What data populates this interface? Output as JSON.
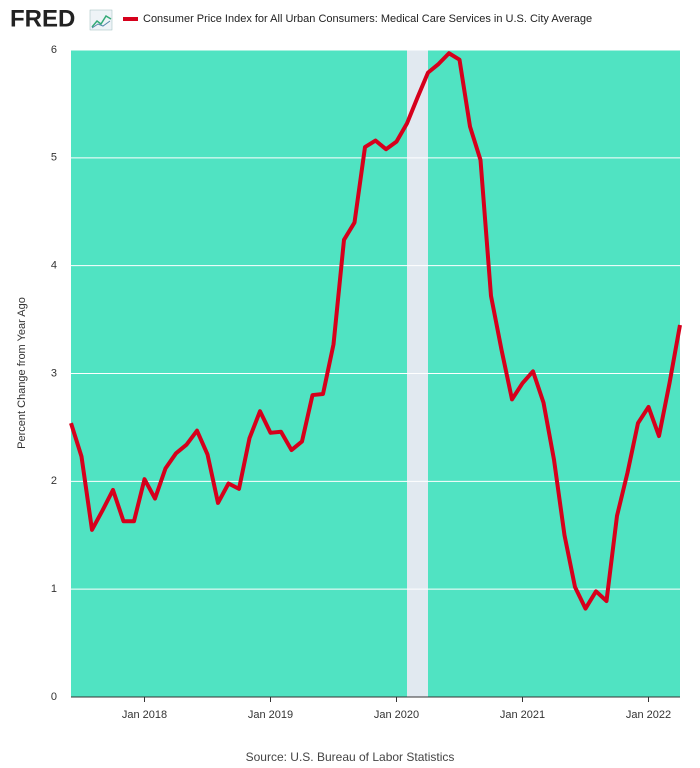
{
  "chart_data": {
    "type": "line",
    "logo": "FRED",
    "ylabel": "Percent Change from Year Ago",
    "source": "Source: U.S. Bureau of Labor Statistics",
    "background": "#50e3c2",
    "grid": true,
    "shaded_periods": [
      [
        "2020-02",
        "2020-04"
      ]
    ],
    "shade_color": "#e1e9f0",
    "x": [
      "2017-06",
      "2017-07",
      "2017-08",
      "2017-09",
      "2017-10",
      "2017-11",
      "2017-12",
      "2018-01",
      "2018-02",
      "2018-03",
      "2018-04",
      "2018-05",
      "2018-06",
      "2018-07",
      "2018-08",
      "2018-09",
      "2018-10",
      "2018-11",
      "2018-12",
      "2019-01",
      "2019-02",
      "2019-03",
      "2019-04",
      "2019-05",
      "2019-06",
      "2019-07",
      "2019-08",
      "2019-09",
      "2019-10",
      "2019-11",
      "2019-12",
      "2020-01",
      "2020-02",
      "2020-03",
      "2020-04",
      "2020-05",
      "2020-06",
      "2020-07",
      "2020-08",
      "2020-09",
      "2020-10",
      "2020-11",
      "2020-12",
      "2021-01",
      "2021-02",
      "2021-03",
      "2021-04",
      "2021-05",
      "2021-06",
      "2021-07",
      "2021-08",
      "2021-09",
      "2021-10",
      "2021-11",
      "2021-12",
      "2022-01",
      "2022-02",
      "2022-03",
      "2022-04"
    ],
    "series": [
      {
        "name": "Consumer Price Index for All Urban Consumers: Medical Care Services in U.S. City Average",
        "color": "#d6001c",
        "values": [
          2.54,
          2.23,
          1.55,
          1.73,
          1.92,
          1.63,
          1.63,
          2.02,
          1.84,
          2.12,
          2.26,
          2.34,
          2.47,
          2.25,
          1.8,
          1.98,
          1.93,
          2.4,
          2.65,
          2.45,
          2.46,
          2.29,
          2.37,
          2.8,
          2.81,
          3.27,
          4.24,
          4.4,
          5.1,
          5.16,
          5.08,
          5.15,
          5.32,
          5.56,
          5.79,
          5.87,
          5.97,
          5.91,
          5.29,
          4.98,
          3.72,
          3.22,
          2.76,
          2.91,
          3.02,
          2.73,
          2.2,
          1.5,
          1.02,
          0.82,
          0.98,
          0.89,
          1.68,
          2.08,
          2.54,
          2.69,
          2.42,
          2.91,
          3.45
        ]
      }
    ],
    "xlim": [
      "2017-06",
      "2022-04"
    ],
    "xticks": [
      {
        "value": "2018-01",
        "label": "Jan 2018"
      },
      {
        "value": "2019-01",
        "label": "Jan 2019"
      },
      {
        "value": "2020-01",
        "label": "Jan 2020"
      },
      {
        "value": "2021-01",
        "label": "Jan 2021"
      },
      {
        "value": "2022-01",
        "label": "Jan 2022"
      }
    ],
    "ylim": [
      0,
      6
    ],
    "yticks": [
      0,
      1,
      2,
      3,
      4,
      5,
      6
    ]
  }
}
